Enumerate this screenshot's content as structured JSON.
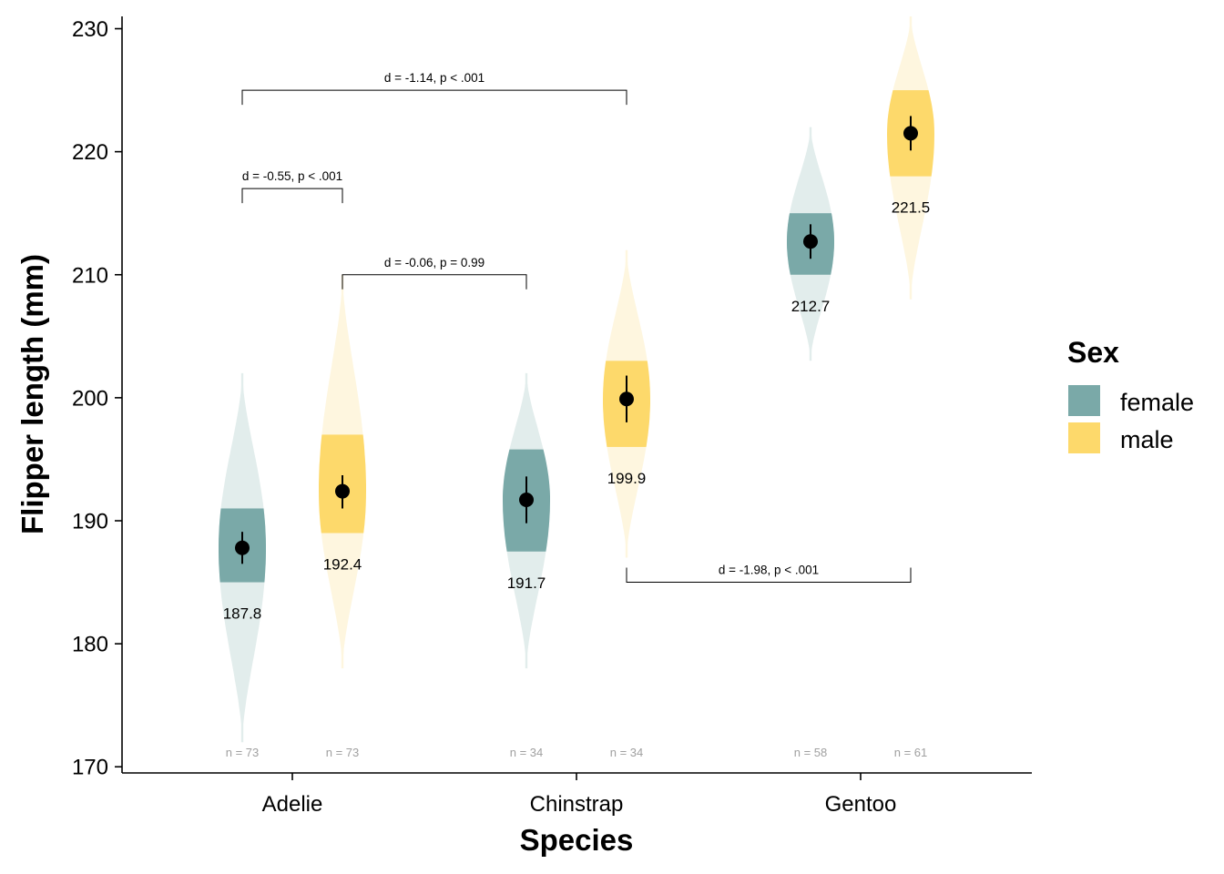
{
  "chart_data": {
    "type": "violin",
    "xlabel": "Species",
    "ylabel": "Flipper length (mm)",
    "ylim": [
      169.5,
      231
    ],
    "yticks": [
      170,
      180,
      190,
      200,
      210,
      220,
      230
    ],
    "categories": [
      "Adelie",
      "Chinstrap",
      "Gentoo"
    ],
    "colors": {
      "female": "#7aa9a8",
      "male": "#fdd96b",
      "female_light": "#e2edec",
      "male_light": "#fef6df",
      "point": "#000000"
    },
    "legend": {
      "title": "Sex",
      "position": "right",
      "items": [
        "female",
        "male"
      ]
    },
    "groups": [
      {
        "species": "Adelie",
        "sex": "female",
        "mean": 187.8,
        "mean_label": "187.8",
        "n_label": "n = 73",
        "range": [
          172,
          202
        ],
        "iqr": [
          185,
          191
        ],
        "ci": [
          186.5,
          189.1
        ]
      },
      {
        "species": "Adelie",
        "sex": "male",
        "mean": 192.4,
        "mean_label": "192.4",
        "n_label": "n = 73",
        "range": [
          178,
          210
        ],
        "iqr": [
          189,
          197
        ],
        "ci": [
          191.0,
          193.7
        ]
      },
      {
        "species": "Chinstrap",
        "sex": "female",
        "mean": 191.7,
        "mean_label": "191.7",
        "n_label": "n = 34",
        "range": [
          178,
          202
        ],
        "iqr": [
          187.5,
          195.8
        ],
        "ci": [
          189.8,
          193.6
        ]
      },
      {
        "species": "Chinstrap",
        "sex": "male",
        "mean": 199.9,
        "mean_label": "199.9",
        "n_label": "n = 34",
        "range": [
          187,
          212
        ],
        "iqr": [
          196,
          203
        ],
        "ci": [
          198.0,
          201.8
        ]
      },
      {
        "species": "Gentoo",
        "sex": "female",
        "mean": 212.7,
        "mean_label": "212.7",
        "n_label": "n = 58",
        "range": [
          203,
          222
        ],
        "iqr": [
          210,
          215
        ],
        "ci": [
          211.3,
          214.1
        ]
      },
      {
        "species": "Gentoo",
        "sex": "male",
        "mean": 221.5,
        "mean_label": "221.5",
        "n_label": "n = 61",
        "range": [
          208,
          231
        ],
        "iqr": [
          218,
          225
        ],
        "ci": [
          220.1,
          222.9
        ]
      }
    ],
    "annotations": [
      {
        "text": "d = -1.14, p < .001",
        "from": "Adelie-female",
        "to": "Chinstrap-male",
        "y": 225,
        "bracket": "down"
      },
      {
        "text": "d = -0.55, p < .001",
        "from": "Adelie-female",
        "to": "Adelie-male",
        "y": 217,
        "bracket": "down"
      },
      {
        "text": "d = -0.06, p = 0.99",
        "from": "Adelie-male",
        "to": "Chinstrap-female",
        "y": 210,
        "bracket": "down"
      },
      {
        "text": "d = -1.98, p < .001",
        "from": "Chinstrap-male",
        "to": "Gentoo-male",
        "y": 185,
        "bracket": "up"
      }
    ]
  }
}
